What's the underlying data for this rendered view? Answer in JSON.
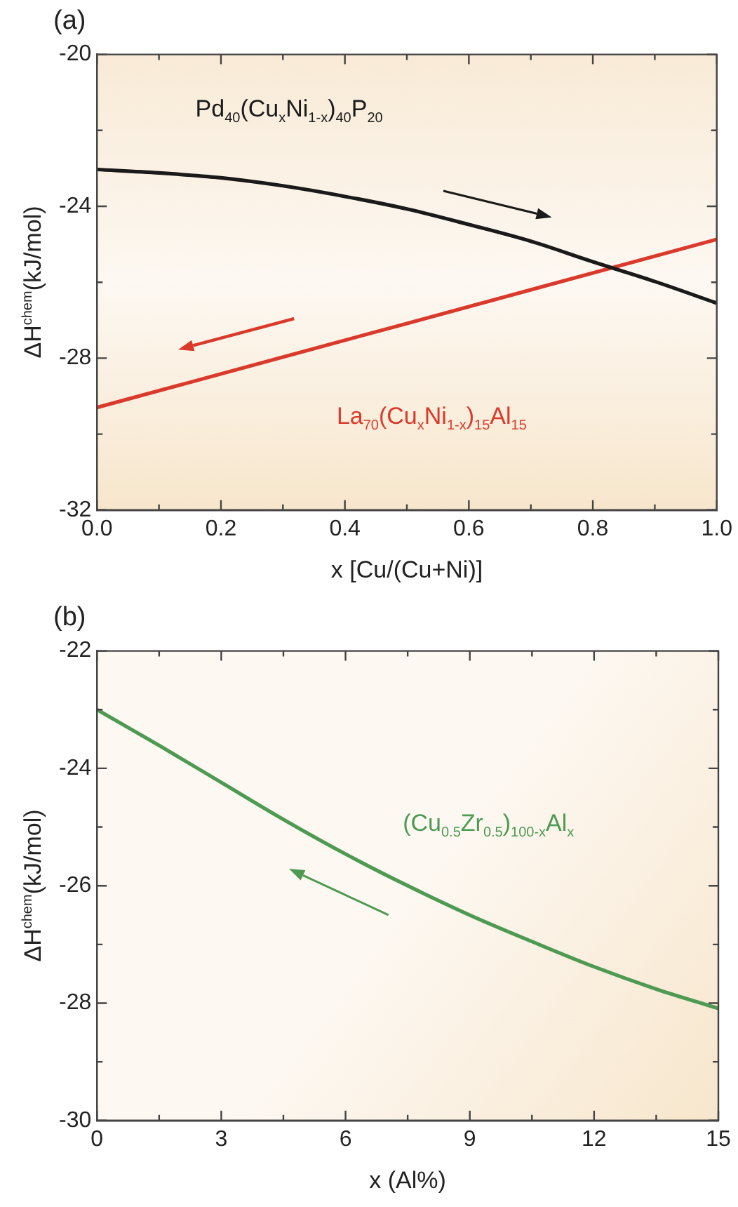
{
  "chart_data": [
    {
      "type": "line",
      "title": "(a)",
      "xlabel": "x [Cu/(Cu+Ni)]",
      "ylabel": "ΔH$^{chem}$(kJ/mol)",
      "x": [
        0,
        0.1,
        0.2,
        0.3,
        0.4,
        0.5,
        0.6,
        0.7,
        0.8,
        0.9,
        1.0
      ],
      "series": [
        {
          "name": "Pd$_{40}$(Cu$_{x}$Ni$_{1-x}$)$_{40}$P$_{20}$",
          "color": "#1a1a1a",
          "values": [
            -23.03,
            -23.12,
            -23.25,
            -23.46,
            -23.74,
            -24.07,
            -24.48,
            -24.92,
            -25.46,
            -25.98,
            -26.55
          ]
        },
        {
          "name": "La$_{70}$(Cu$_{x}$Ni$_{1-x}$)$_{15}$Al$_{15}$",
          "color": "#d93a2b",
          "x": [
            0,
            1.0
          ],
          "values": [
            -29.3,
            -24.87
          ]
        }
      ],
      "xlim": [
        0,
        1.0
      ],
      "xticks": [
        {
          "value": 0,
          "label": "0.0"
        },
        {
          "value": 0.1,
          "label": null
        },
        {
          "value": 0.2,
          "label": "0.2"
        },
        {
          "value": 0.3,
          "label": null
        },
        {
          "value": 0.4,
          "label": "0.4"
        },
        {
          "value": 0.5,
          "label": null
        },
        {
          "value": 0.6,
          "label": "0.6"
        },
        {
          "value": 0.7,
          "label": null
        },
        {
          "value": 0.8,
          "label": "0.8"
        },
        {
          "value": 0.9,
          "label": null
        },
        {
          "value": 1.0,
          "label": "1.0"
        }
      ],
      "ylim": [
        -32,
        -20
      ],
      "yticks": [
        -32,
        {
          "value": -30,
          "label": null
        },
        -28,
        {
          "value": -26,
          "label": null
        },
        -24,
        {
          "value": -22,
          "label": null
        },
        -20
      ],
      "marker": "none",
      "line_style": "solid"
    },
    {
      "type": "line",
      "title": "(b)",
      "xlabel": "x (Al%)",
      "ylabel": "ΔH$^{chem}$(kJ/mol)",
      "x": [
        0,
        1.5,
        3,
        4.5,
        6,
        7.5,
        9,
        10.5,
        12,
        13.5,
        15
      ],
      "series": [
        {
          "name": "(Cu$_{0.5}$Zr$_{0.5}$)$_{100-x}$Al$_{x}$",
          "color": "#4e9a52",
          "values": [
            -23.0,
            -23.61,
            -24.24,
            -24.87,
            -25.46,
            -26.0,
            -26.5,
            -26.95,
            -27.38,
            -27.76,
            -28.09
          ]
        }
      ],
      "xlim": [
        0,
        15
      ],
      "xticks": [
        0,
        {
          "value": 1.5,
          "label": null
        },
        3,
        {
          "value": 4.5,
          "label": null
        },
        6,
        {
          "value": 7.5,
          "label": null
        },
        9,
        {
          "value": 10.5,
          "label": null
        },
        12,
        {
          "value": 13.5,
          "label": null
        },
        15
      ],
      "ylim": [
        -30,
        -22
      ],
      "yticks": [
        -30,
        {
          "value": -29,
          "label": null
        },
        -28,
        {
          "value": -27,
          "label": null
        },
        -26,
        {
          "value": -25,
          "label": null
        },
        -24,
        {
          "value": -23,
          "label": null
        },
        -22
      ],
      "marker": "none",
      "line_style": "solid"
    }
  ]
}
